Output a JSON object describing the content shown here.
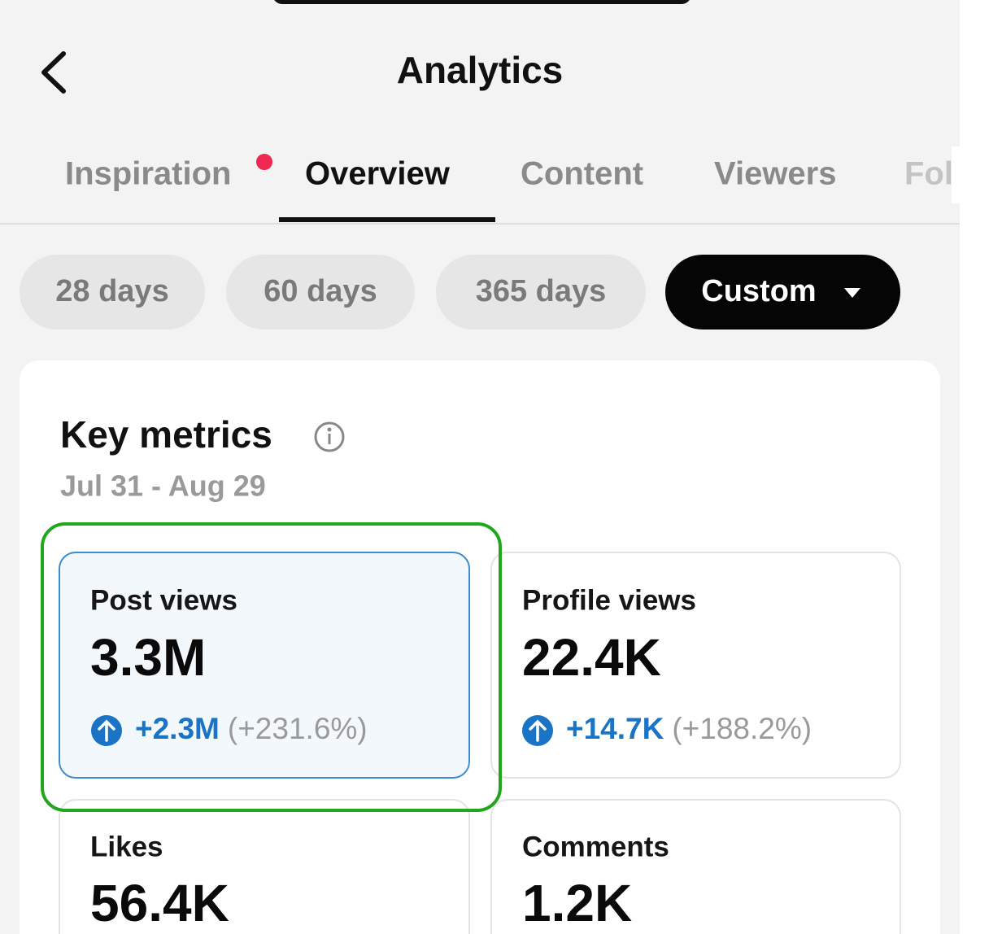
{
  "header": {
    "title": "Analytics"
  },
  "tabs": [
    "Inspiration",
    "Overview",
    "Content",
    "Viewers",
    "Fol"
  ],
  "ranges": [
    "28 days",
    "60 days",
    "365 days",
    "Custom"
  ],
  "card": {
    "title": "Key metrics",
    "date": "Jul 31 - Aug 29",
    "metrics": [
      {
        "label": "Post views",
        "value": "3.3M",
        "change": "+2.3M",
        "percent": "(+231.6%)"
      },
      {
        "label": "Profile views",
        "value": "22.4K",
        "change": "+14.7K",
        "percent": "(+188.2%)"
      },
      {
        "label": "Likes",
        "value": "56.4K"
      },
      {
        "label": "Comments",
        "value": "1.2K"
      }
    ]
  }
}
